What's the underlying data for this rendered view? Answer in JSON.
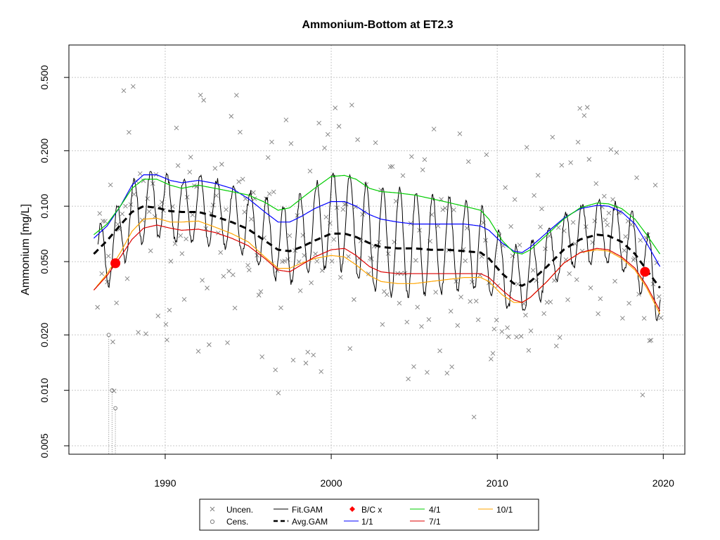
{
  "chart_data": {
    "type": "line",
    "title": "Ammonium-Bottom at ET2.3",
    "xlabel": "",
    "ylabel": "Ammonium [mg/L]",
    "y_scale": "log",
    "xlim": [
      1984.2,
      2021.3
    ],
    "ylim": [
      0.0045,
      0.75
    ],
    "x_ticks": [
      1990,
      2000,
      2010,
      2020
    ],
    "x_tick_labels": [
      "1990",
      "2000",
      "2010",
      "2020"
    ],
    "y_ticks": [
      0.005,
      0.01,
      0.02,
      0.05,
      0.1,
      0.2,
      0.5
    ],
    "y_tick_labels": [
      "0.005",
      "0.010",
      "0.020",
      "0.050",
      "0.100",
      "0.200",
      "0.500"
    ],
    "grid": true,
    "legend_position": "bottom",
    "legend": [
      {
        "label": "Uncen.",
        "symbol": "x",
        "color": "#808080"
      },
      {
        "label": "Cens.",
        "symbol": "o",
        "color": "#808080"
      },
      {
        "label": "Fit.GAM",
        "symbol": "line",
        "color": "#000000"
      },
      {
        "label": "Avg.GAM",
        "symbol": "dash",
        "color": "#000000"
      },
      {
        "label": "B/C x",
        "symbol": "diamond",
        "color": "#ff0000"
      },
      {
        "label": "1/1",
        "symbol": "line",
        "color": "#0000ff"
      },
      {
        "label": "4/1",
        "symbol": "line",
        "color": "#00cc00"
      },
      {
        "label": "7/1",
        "symbol": "line",
        "color": "#dd0000"
      },
      {
        "label": "10/1",
        "symbol": "line",
        "color": "#ffa500"
      }
    ],
    "series": [
      {
        "name": "4/1",
        "color": "#00cc00",
        "x": [
          1985.7,
          1986.5,
          1987.3,
          1988.0,
          1988.7,
          1989.5,
          1990.3,
          1991.0,
          1992.0,
          1993.0,
          1994.0,
          1995.0,
          1996.0,
          1996.8,
          1997.5,
          1998.2,
          1999.0,
          2000.0,
          2000.8,
          2001.5,
          2002.3,
          2003.0,
          2004.0,
          2005.0,
          2006.0,
          2007.0,
          2008.0,
          2009.0,
          2009.5,
          2010.3,
          2011.0,
          2011.5,
          2012.0,
          2013.0,
          2014.0,
          2015.0,
          2016.0,
          2016.7,
          2017.5,
          2018.3,
          2019.0,
          2019.8
        ],
        "y": [
          0.07,
          0.08,
          0.1,
          0.125,
          0.14,
          0.14,
          0.13,
          0.125,
          0.13,
          0.125,
          0.12,
          0.115,
          0.105,
          0.095,
          0.098,
          0.11,
          0.125,
          0.145,
          0.147,
          0.14,
          0.125,
          0.12,
          0.118,
          0.115,
          0.11,
          0.105,
          0.1,
          0.095,
          0.085,
          0.065,
          0.056,
          0.055,
          0.058,
          0.07,
          0.085,
          0.098,
          0.104,
          0.103,
          0.097,
          0.085,
          0.07,
          0.055
        ]
      },
      {
        "name": "1/1",
        "color": "#0000ff",
        "x": [
          1985.7,
          1986.5,
          1987.3,
          1988.0,
          1988.7,
          1989.5,
          1990.3,
          1991.0,
          1992.0,
          1993.0,
          1994.0,
          1995.0,
          1996.0,
          1996.8,
          1997.5,
          1998.2,
          1999.0,
          2000.0,
          2000.8,
          2001.5,
          2002.3,
          2003.0,
          2004.0,
          2005.0,
          2006.0,
          2007.0,
          2008.0,
          2009.0,
          2009.5,
          2010.3,
          2011.0,
          2011.5,
          2012.0,
          2013.0,
          2014.0,
          2015.0,
          2016.0,
          2016.7,
          2017.5,
          2018.3,
          2019.0,
          2019.8
        ],
        "y": [
          0.067,
          0.078,
          0.1,
          0.13,
          0.148,
          0.148,
          0.138,
          0.134,
          0.138,
          0.133,
          0.125,
          0.11,
          0.093,
          0.082,
          0.082,
          0.088,
          0.097,
          0.106,
          0.106,
          0.1,
          0.09,
          0.085,
          0.082,
          0.08,
          0.08,
          0.08,
          0.08,
          0.078,
          0.074,
          0.063,
          0.057,
          0.056,
          0.06,
          0.072,
          0.086,
          0.097,
          0.101,
          0.1,
          0.093,
          0.08,
          0.063,
          0.047
        ]
      },
      {
        "name": "Avg.GAM",
        "color": "#000000",
        "x": [
          1985.7,
          1986.5,
          1987.3,
          1988.0,
          1988.7,
          1989.5,
          1990.3,
          1991.0,
          1992.0,
          1993.0,
          1994.0,
          1995.0,
          1996.0,
          1996.8,
          1997.5,
          1998.2,
          1999.0,
          2000.0,
          2000.8,
          2001.5,
          2002.3,
          2003.0,
          2004.0,
          2005.0,
          2006.0,
          2007.0,
          2008.0,
          2009.0,
          2009.5,
          2010.3,
          2011.0,
          2011.5,
          2012.0,
          2013.0,
          2014.0,
          2015.0,
          2016.0,
          2016.7,
          2017.5,
          2018.3,
          2019.0,
          2019.8
        ],
        "y": [
          0.055,
          0.065,
          0.079,
          0.093,
          0.1,
          0.098,
          0.094,
          0.093,
          0.093,
          0.088,
          0.082,
          0.075,
          0.065,
          0.058,
          0.057,
          0.06,
          0.065,
          0.071,
          0.071,
          0.068,
          0.063,
          0.06,
          0.059,
          0.059,
          0.058,
          0.058,
          0.057,
          0.056,
          0.052,
          0.043,
          0.038,
          0.037,
          0.039,
          0.047,
          0.058,
          0.066,
          0.07,
          0.069,
          0.064,
          0.055,
          0.045,
          0.036
        ]
      },
      {
        "name": "10/1",
        "color": "#ffa500",
        "x": [
          1985.7,
          1986.5,
          1987.3,
          1988.0,
          1988.7,
          1989.5,
          1990.3,
          1991.0,
          1992.0,
          1993.0,
          1994.0,
          1995.0,
          1996.0,
          1996.8,
          1997.5,
          1998.2,
          1999.0,
          2000.0,
          2000.8,
          2001.5,
          2002.3,
          2003.0,
          2004.0,
          2005.0,
          2006.0,
          2007.0,
          2008.0,
          2009.0,
          2009.5,
          2010.3,
          2011.0,
          2011.5,
          2012.0,
          2013.0,
          2014.0,
          2015.0,
          2016.0,
          2016.7,
          2017.5,
          2018.3,
          2019.0,
          2019.8
        ],
        "y": [
          0.035,
          0.043,
          0.056,
          0.073,
          0.085,
          0.086,
          0.082,
          0.082,
          0.083,
          0.077,
          0.071,
          0.064,
          0.053,
          0.046,
          0.046,
          0.049,
          0.052,
          0.054,
          0.053,
          0.048,
          0.042,
          0.039,
          0.038,
          0.038,
          0.039,
          0.04,
          0.041,
          0.041,
          0.039,
          0.033,
          0.03,
          0.03,
          0.032,
          0.039,
          0.049,
          0.056,
          0.058,
          0.057,
          0.052,
          0.045,
          0.036,
          0.026
        ]
      },
      {
        "name": "7/1",
        "color": "#dd0000",
        "x": [
          1985.7,
          1986.5,
          1987.3,
          1988.0,
          1988.7,
          1989.5,
          1990.3,
          1991.0,
          1992.0,
          1993.0,
          1994.0,
          1995.0,
          1996.0,
          1996.8,
          1997.5,
          1998.2,
          1999.0,
          2000.0,
          2000.8,
          2001.5,
          2002.3,
          2003.0,
          2004.0,
          2005.0,
          2006.0,
          2007.0,
          2008.0,
          2009.0,
          2009.5,
          2010.3,
          2011.0,
          2011.5,
          2012.0,
          2013.0,
          2014.0,
          2015.0,
          2016.0,
          2016.7,
          2017.5,
          2018.3,
          2019.0,
          2019.8
        ],
        "y": [
          0.035,
          0.042,
          0.053,
          0.066,
          0.076,
          0.079,
          0.076,
          0.074,
          0.075,
          0.072,
          0.067,
          0.061,
          0.052,
          0.045,
          0.044,
          0.048,
          0.053,
          0.058,
          0.059,
          0.054,
          0.047,
          0.044,
          0.043,
          0.043,
          0.043,
          0.043,
          0.043,
          0.043,
          0.041,
          0.035,
          0.031,
          0.03,
          0.032,
          0.039,
          0.049,
          0.056,
          0.059,
          0.058,
          0.053,
          0.046,
          0.037,
          0.027
        ]
      }
    ],
    "bc_points": {
      "name": "B/C x",
      "color": "#ff0000",
      "x": [
        1987.0,
        2018.9
      ],
      "y": [
        0.049,
        0.044
      ]
    },
    "censored_points": {
      "name": "Cens.",
      "x": [
        1986.6,
        1986.8,
        1987.0
      ],
      "y": [
        0.02,
        0.01,
        0.008
      ]
    }
  }
}
